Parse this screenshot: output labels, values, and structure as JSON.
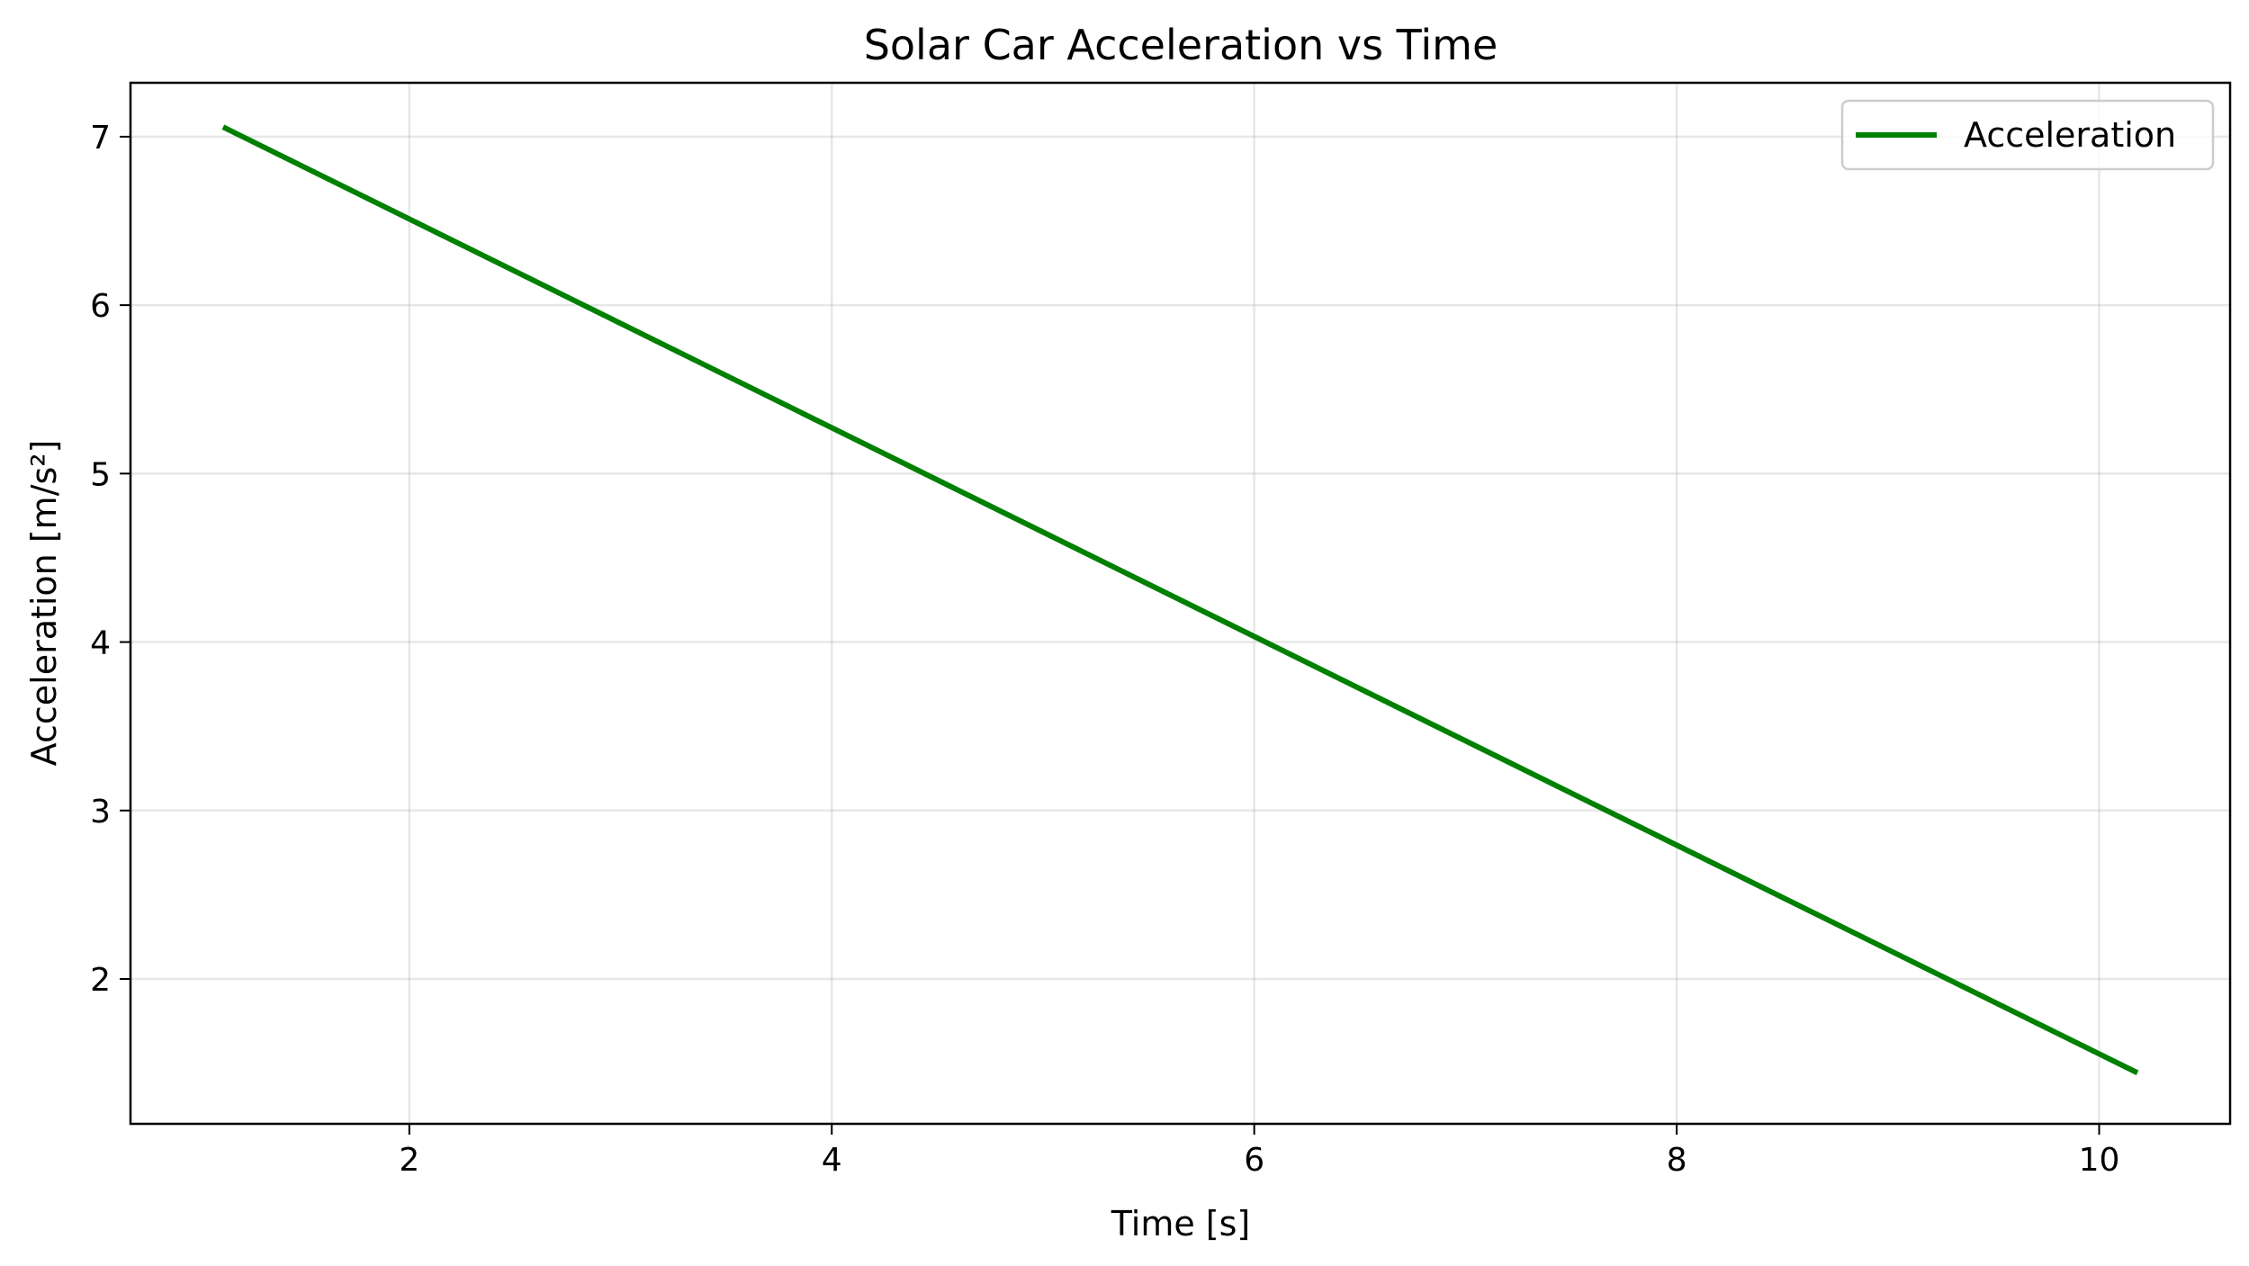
{
  "chart_data": {
    "type": "line",
    "title": "Solar Car Acceleration vs Time",
    "xlabel": "Time [s]",
    "ylabel": "Acceleration [m/s²]",
    "xlim": [
      0.68,
      10.62
    ],
    "ylim": [
      1.14,
      7.32
    ],
    "xticks": [
      2,
      4,
      6,
      8,
      10
    ],
    "xtick_labels": [
      "2",
      "4",
      "6",
      "8",
      "10"
    ],
    "yticks": [
      2,
      3,
      4,
      5,
      6,
      7
    ],
    "ytick_labels": [
      "2",
      "3",
      "4",
      "5",
      "6",
      "7"
    ],
    "grid": true,
    "legend": {
      "position": "top-right"
    },
    "series": [
      {
        "name": "Acceleration",
        "color": "#008000",
        "x": [
          1.13,
          10.17
        ],
        "y": [
          7.05,
          1.45
        ]
      }
    ]
  }
}
